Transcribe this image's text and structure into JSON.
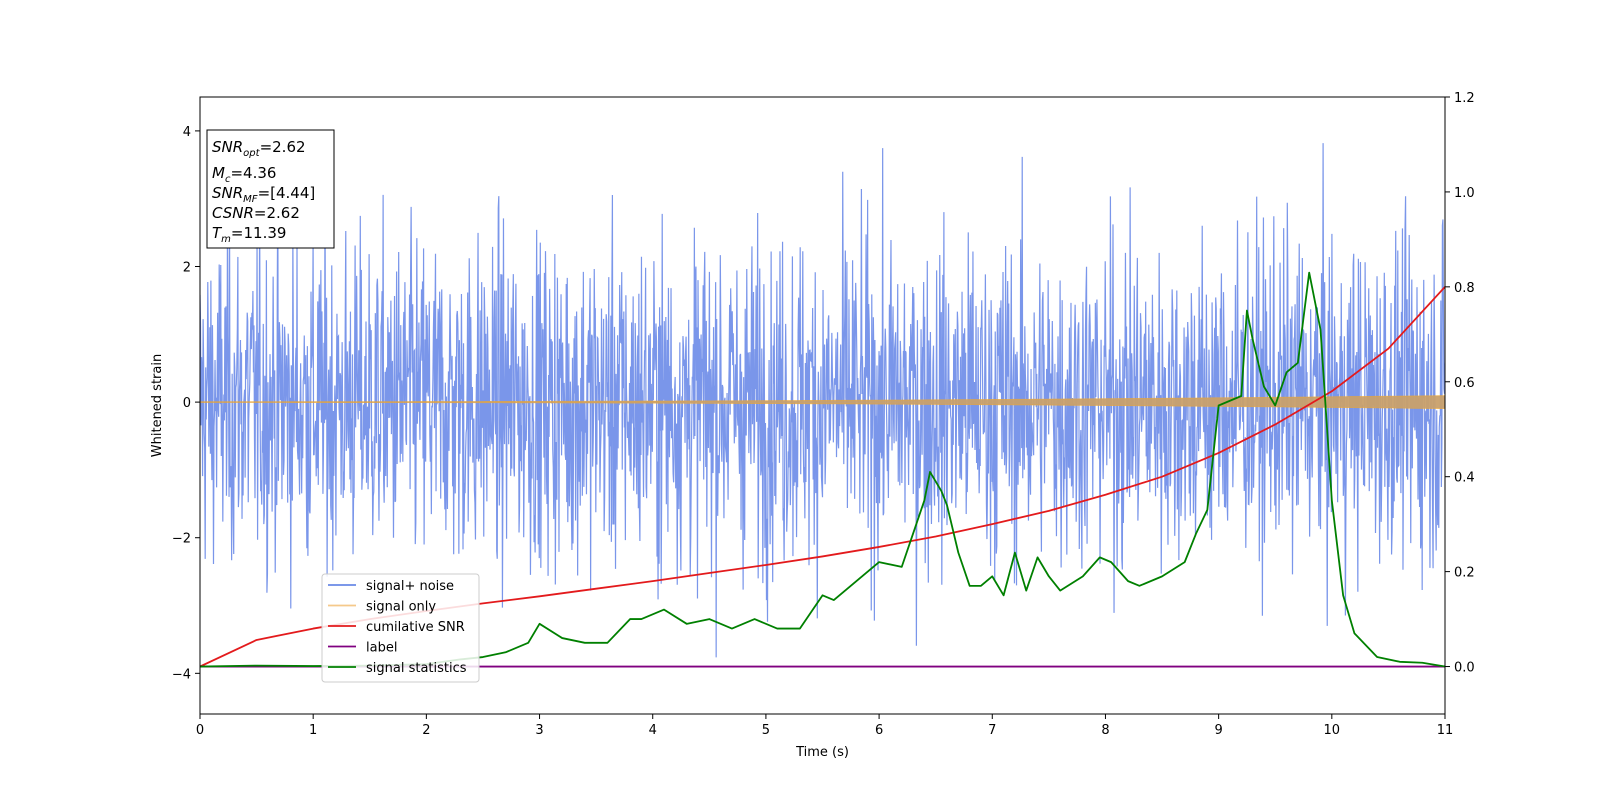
{
  "chart_data": {
    "type": "line",
    "xlabel": "Time (s)",
    "ylabel_left": "Whitened strain",
    "ylabel_right": "",
    "xlim": [
      0,
      11
    ],
    "ylim_left": [
      -4.6,
      4.5
    ],
    "ylim_right": [
      -0.1,
      1.2
    ],
    "x_ticks": [
      0,
      1,
      2,
      3,
      4,
      5,
      6,
      7,
      8,
      9,
      10,
      11
    ],
    "y_ticks_left": [
      -4,
      -2,
      0,
      2,
      4
    ],
    "y_ticks_right": [
      0.0,
      0.2,
      0.4,
      0.6,
      0.8,
      1.0,
      1.2
    ],
    "grid": false,
    "legend_position": "lower-left",
    "info_box": {
      "snr_opt": "2.62",
      "mc": "4.36",
      "snr_mf": "[4.44]",
      "csnr": "2.62",
      "tm": "11.39"
    },
    "series": [
      {
        "name": "signal+ noise",
        "axis": "left",
        "color": "#4169e1",
        "style": "noise",
        "amplitude": 1.6,
        "samples": 2400
      },
      {
        "name": "signal only",
        "axis": "left",
        "color": "#f5a623",
        "style": "chirp",
        "amplitude_start": 0.0,
        "amplitude_end": 0.09
      },
      {
        "name": "cumilative SNR",
        "axis": "right",
        "color": "#e31a1c",
        "x": [
          0,
          0.5,
          1,
          1.5,
          2,
          2.5,
          3,
          3.5,
          4,
          4.5,
          5,
          5.5,
          6,
          6.5,
          7,
          7.5,
          8,
          8.5,
          9,
          9.5,
          10,
          10.5,
          11
        ],
        "y": [
          0.0,
          0.056,
          0.08,
          0.1,
          0.117,
          0.133,
          0.148,
          0.164,
          0.18,
          0.197,
          0.214,
          0.232,
          0.252,
          0.274,
          0.3,
          0.328,
          0.362,
          0.4,
          0.45,
          0.51,
          0.58,
          0.67,
          0.8
        ]
      },
      {
        "name": "label",
        "axis": "right",
        "color": "#800080",
        "x": [
          0,
          11
        ],
        "y": [
          0.0,
          0.0
        ]
      },
      {
        "name": "signal statistics",
        "axis": "right",
        "color": "#008000",
        "x": [
          0,
          0.5,
          1,
          1.5,
          2,
          2.3,
          2.5,
          2.7,
          2.9,
          3.0,
          3.2,
          3.4,
          3.6,
          3.8,
          3.9,
          4.1,
          4.3,
          4.5,
          4.7,
          4.9,
          5.1,
          5.3,
          5.5,
          5.6,
          5.8,
          6.0,
          6.2,
          6.3,
          6.4,
          6.45,
          6.55,
          6.6,
          6.7,
          6.8,
          6.9,
          7.0,
          7.1,
          7.2,
          7.3,
          7.4,
          7.5,
          7.6,
          7.8,
          7.95,
          8.05,
          8.2,
          8.3,
          8.5,
          8.7,
          8.8,
          8.9,
          9.0,
          9.1,
          9.2,
          9.25,
          9.3,
          9.4,
          9.5,
          9.6,
          9.7,
          9.8,
          9.9,
          10.0,
          10.1,
          10.2,
          10.4,
          10.6,
          10.8,
          11
        ],
        "y": [
          0.0,
          0.002,
          0.001,
          0.002,
          0.005,
          0.015,
          0.02,
          0.03,
          0.05,
          0.09,
          0.06,
          0.05,
          0.05,
          0.1,
          0.1,
          0.12,
          0.09,
          0.1,
          0.08,
          0.1,
          0.08,
          0.08,
          0.15,
          0.14,
          0.18,
          0.22,
          0.21,
          0.28,
          0.35,
          0.41,
          0.37,
          0.34,
          0.24,
          0.17,
          0.17,
          0.19,
          0.15,
          0.24,
          0.16,
          0.23,
          0.19,
          0.16,
          0.19,
          0.23,
          0.22,
          0.18,
          0.17,
          0.19,
          0.22,
          0.28,
          0.33,
          0.55,
          0.56,
          0.57,
          0.75,
          0.69,
          0.59,
          0.55,
          0.62,
          0.64,
          0.83,
          0.71,
          0.35,
          0.15,
          0.07,
          0.02,
          0.01,
          0.008,
          0.0
        ]
      }
    ]
  }
}
